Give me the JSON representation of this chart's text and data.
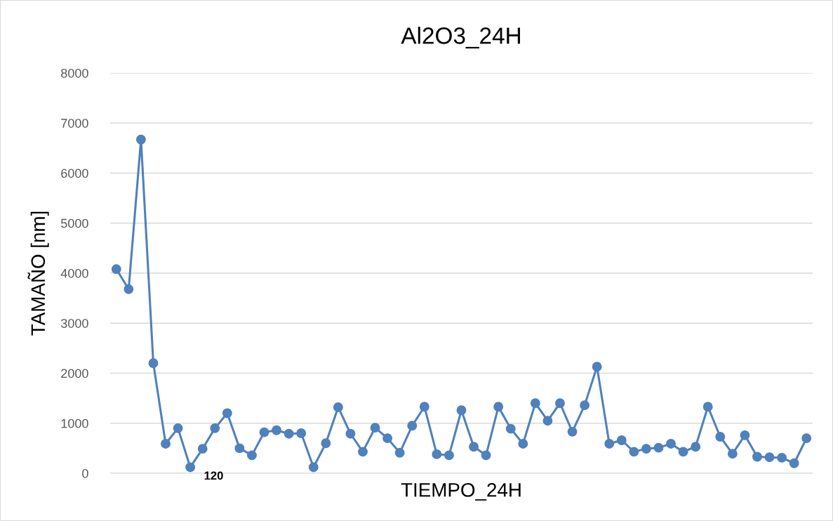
{
  "chart_data": {
    "type": "line",
    "title": "Al2O3_24H",
    "xlabel": "TIEMPO_24H",
    "ylabel": "TAMAÑO [nm]",
    "categories": [
      null,
      null,
      null,
      null,
      null,
      null,
      null,
      null,
      null,
      null,
      null,
      null,
      null,
      null,
      null,
      null,
      null,
      null,
      null,
      null,
      null,
      null,
      null,
      null,
      null,
      null,
      null,
      null,
      null,
      null,
      null,
      null,
      null,
      null,
      null,
      null,
      null,
      null,
      null,
      null,
      null,
      null,
      null,
      null,
      null,
      null,
      null,
      null,
      null,
      null,
      null,
      null,
      null,
      null,
      null,
      null,
      null
    ],
    "series": [
      {
        "color": "#4f81bd",
        "values": [
          4080,
          3680,
          6670,
          2200,
          590,
          900,
          120,
          490,
          900,
          1200,
          500,
          360,
          820,
          860,
          790,
          800,
          120,
          600,
          1320,
          790,
          430,
          910,
          700,
          410,
          950,
          1330,
          380,
          360,
          1260,
          530,
          360,
          1330,
          890,
          590,
          1400,
          1050,
          1400,
          830,
          1360,
          2130,
          590,
          660,
          430,
          490,
          510,
          590,
          430,
          530,
          1330,
          730,
          390,
          760,
          330,
          320,
          310,
          200,
          700
        ],
        "value_labels": [
          null,
          null,
          null,
          null,
          null,
          null,
          "120",
          null,
          null,
          null,
          null,
          null,
          null,
          null,
          null,
          null,
          null,
          null,
          null,
          null,
          null,
          null,
          null,
          null,
          null,
          null,
          null,
          null,
          null,
          null,
          null,
          null,
          null,
          null,
          null,
          null,
          null,
          null,
          null,
          null,
          null,
          null,
          null,
          null,
          null,
          null,
          null,
          null,
          null,
          null,
          null,
          null,
          null,
          null,
          null,
          null,
          null
        ]
      }
    ],
    "ylim": [
      0,
      8000
    ],
    "yticks": [
      0,
      1000,
      2000,
      3000,
      4000,
      5000,
      6000,
      7000,
      8000
    ],
    "grid": "y",
    "marker": "circle",
    "line_style": "solid",
    "legend": false
  }
}
